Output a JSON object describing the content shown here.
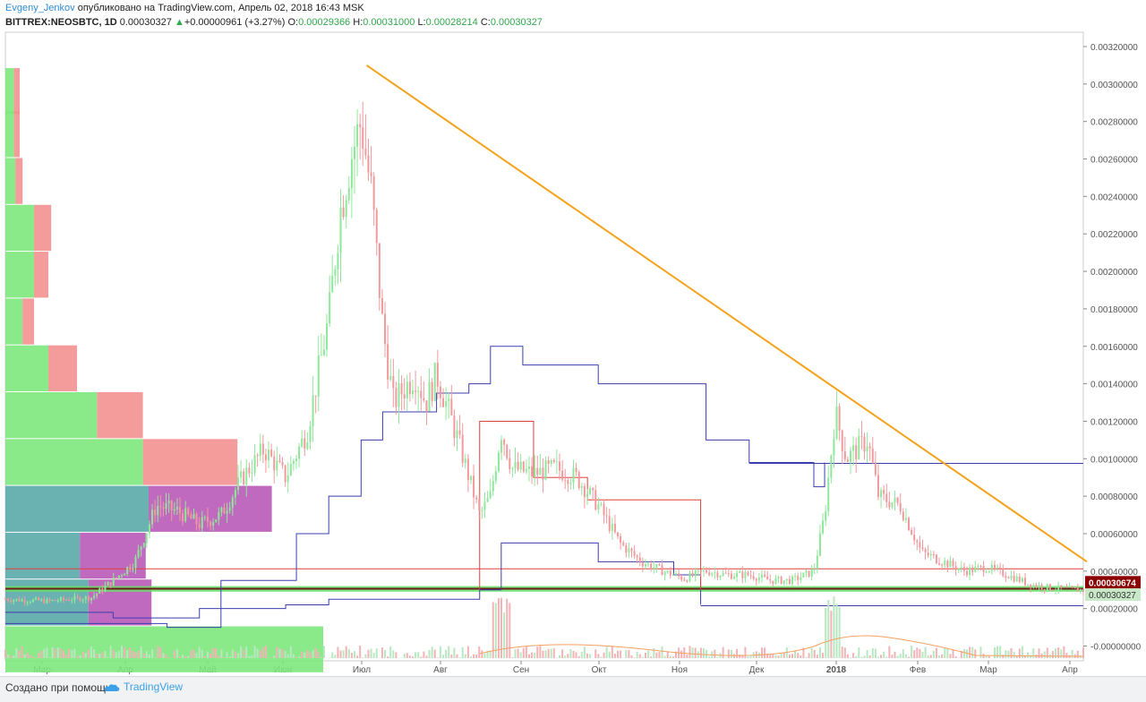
{
  "header": {
    "author": "Evgeny_Jenkov",
    "published": "опубликовано на TradingView.com, Апрель 02, 2018 16:43 MSK",
    "symbol": "BITTREX:NEOSBTC, 1D",
    "last": "0.00030327",
    "change": "+0.00000961 (+3.27%)",
    "o_label": "O:",
    "o": "0.00029366",
    "h_label": "H:",
    "h": "0.00031000",
    "l_label": "L:",
    "l": "0.00028214",
    "c_label": "C:",
    "c": "0.00030327"
  },
  "footer": {
    "created_with": "Создано при помощи",
    "brand": "TradingView"
  },
  "colors": {
    "up": "#26a65b",
    "down": "#e0656b",
    "trendline": "#f5a21b",
    "channel": "#3b3fae",
    "support_band": "#66e066",
    "resistance": "#e0403a"
  },
  "chart_data": {
    "type": "candlestick",
    "x_tick_labels": [
      "Мар",
      "Апр",
      "Май",
      "Июн",
      "Июл",
      "Авг",
      "Сен",
      "Окт",
      "Ноя",
      "Дек",
      "2018",
      "Фев",
      "Мар",
      "Апр"
    ],
    "y_ticks": [
      0.0032,
      0.003,
      0.0028,
      0.0026,
      0.0024,
      0.0022,
      0.002,
      0.0018,
      0.0016,
      0.0014,
      0.0012,
      0.001,
      0.0008,
      0.0006,
      0.0004,
      0.0002,
      0
    ],
    "y_tick_labels": [
      "0.00320000",
      "0.00300000",
      "0.00280000",
      "0.00260000",
      "0.00240000",
      "0.00220000",
      "0.00200000",
      "0.00180000",
      "0.00160000",
      "0.00140000",
      "0.00120000",
      "0.00100000",
      "0.00080000",
      "0.00060000",
      "0.00040000",
      "0.00020000",
      "-0.00000000"
    ],
    "ylim": [
      -5e-05,
      0.00329
    ],
    "price_labels": [
      {
        "value": 0.00030674,
        "text": "0.00030674",
        "color": "#8b0000"
      },
      {
        "value": 0.00030327,
        "text": "0.00030327",
        "color": "#c8e8c8"
      }
    ],
    "trendline": [
      {
        "x": 0.331,
        "y": 0.0031
      },
      {
        "x": 1.0,
        "y": 0.00045
      }
    ],
    "horizontal_lines": [
      {
        "y": 0.000412,
        "color": "#e0403a"
      },
      {
        "y": 0.000975,
        "x_from": 0.69,
        "x_to": 1.0,
        "color": "#3b3fae"
      },
      {
        "y": 0.000215,
        "x_from": 0.645,
        "x_to": 1.0,
        "color": "#3b3fae"
      }
    ],
    "support_band": [
      0.00029,
      0.00032
    ],
    "price_path": [
      [
        0.0,
        0.00025
      ],
      [
        0.04,
        0.00024
      ],
      [
        0.08,
        0.00026
      ],
      [
        0.1,
        0.00035
      ],
      [
        0.12,
        0.00045
      ],
      [
        0.14,
        0.00075
      ],
      [
        0.16,
        0.00072
      ],
      [
        0.18,
        0.00065
      ],
      [
        0.2,
        0.0007
      ],
      [
        0.22,
        0.0009
      ],
      [
        0.24,
        0.00105
      ],
      [
        0.26,
        0.0009
      ],
      [
        0.28,
        0.00115
      ],
      [
        0.3,
        0.00175
      ],
      [
        0.31,
        0.0023
      ],
      [
        0.32,
        0.0026
      ],
      [
        0.33,
        0.0028
      ],
      [
        0.34,
        0.0024
      ],
      [
        0.35,
        0.0017
      ],
      [
        0.36,
        0.0013
      ],
      [
        0.38,
        0.00145
      ],
      [
        0.39,
        0.0013
      ],
      [
        0.4,
        0.00145
      ],
      [
        0.42,
        0.0011
      ],
      [
        0.43,
        0.0009
      ],
      [
        0.44,
        0.0007
      ],
      [
        0.45,
        0.0008
      ],
      [
        0.46,
        0.00115
      ],
      [
        0.47,
        0.00095
      ],
      [
        0.49,
        0.00092
      ],
      [
        0.51,
        0.00095
      ],
      [
        0.53,
        0.0009
      ],
      [
        0.55,
        0.00075
      ],
      [
        0.57,
        0.00055
      ],
      [
        0.59,
        0.00045
      ],
      [
        0.61,
        0.0004
      ],
      [
        0.63,
        0.00036
      ],
      [
        0.65,
        0.0004
      ],
      [
        0.67,
        0.00038
      ],
      [
        0.69,
        0.00038
      ],
      [
        0.71,
        0.00035
      ],
      [
        0.73,
        0.00035
      ],
      [
        0.75,
        0.0004
      ],
      [
        0.76,
        0.0007
      ],
      [
        0.77,
        0.00125
      ],
      [
        0.78,
        0.001
      ],
      [
        0.8,
        0.0011
      ],
      [
        0.81,
        0.0008
      ],
      [
        0.83,
        0.00075
      ],
      [
        0.85,
        0.0005
      ],
      [
        0.87,
        0.00045
      ],
      [
        0.89,
        0.0004
      ],
      [
        0.91,
        0.00042
      ],
      [
        0.93,
        0.00038
      ],
      [
        0.95,
        0.00033
      ],
      [
        0.97,
        0.00031
      ],
      [
        0.99,
        0.0003
      ]
    ],
    "volume_profile": [
      {
        "price": 0.00296,
        "up": 0.3,
        "down": 0.2
      },
      {
        "price": 0.00273,
        "up": 0.3,
        "down": 0.2
      },
      {
        "price": 0.00248,
        "up": 0.35,
        "down": 0.25
      },
      {
        "price": 0.00223,
        "up": 1.0,
        "down": 0.6
      },
      {
        "price": 0.00198,
        "up": 1.0,
        "down": 0.5
      },
      {
        "price": 0.00173,
        "up": 0.6,
        "down": 0.4
      },
      {
        "price": 0.00148,
        "up": 1.5,
        "down": 1.0
      },
      {
        "price": 0.00123,
        "up": 3.2,
        "down": 1.6
      },
      {
        "price": 0.00098,
        "up": 4.8,
        "down": 3.3
      },
      {
        "price": 0.00073,
        "up": 5.0,
        "down": 4.3
      },
      {
        "price": 0.00048,
        "up": 2.6,
        "down": 2.3
      },
      {
        "price": 0.00023,
        "up": 2.9,
        "down": 2.2
      },
      {
        "price": -2e-05,
        "up": 11.2,
        "down": 9.4
      }
    ],
    "volume_range": [
      -2e-05,
      5e-05
    ]
  }
}
